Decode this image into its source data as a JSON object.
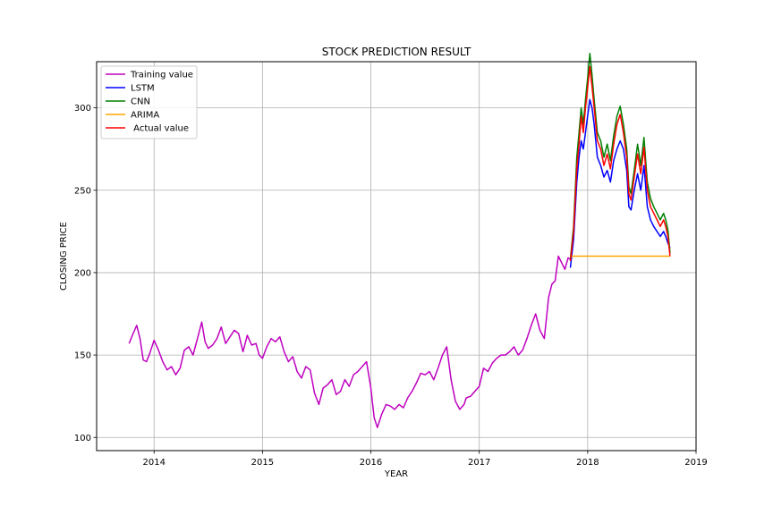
{
  "chart_data": {
    "type": "line",
    "title": "STOCK PREDICTION RESULT",
    "xlabel": "YEAR",
    "ylabel": "CLOSING PRICE",
    "xlim": [
      2013.47,
      2019.0
    ],
    "ylim": [
      92,
      328
    ],
    "x_ticks": [
      2014,
      2015,
      2016,
      2017,
      2018,
      2019
    ],
    "x_tick_labels": [
      "2014",
      "2015",
      "2016",
      "2017",
      "2018",
      "2019"
    ],
    "y_ticks": [
      100,
      150,
      200,
      250,
      300
    ],
    "y_tick_labels": [
      "100",
      "150",
      "200",
      "250",
      "300"
    ],
    "grid": true,
    "legend_position": "top-left",
    "series": [
      {
        "name": "Training value",
        "color": "#bf00bf",
        "x": [
          2013.77,
          2013.8,
          2013.84,
          2013.87,
          2013.9,
          2013.93,
          2013.96,
          2014.0,
          2014.04,
          2014.08,
          2014.12,
          2014.16,
          2014.2,
          2014.24,
          2014.28,
          2014.32,
          2014.36,
          2014.4,
          2014.44,
          2014.47,
          2014.5,
          2014.54,
          2014.58,
          2014.62,
          2014.66,
          2014.7,
          2014.74,
          2014.78,
          2014.82,
          2014.86,
          2014.9,
          2014.94,
          2014.97,
          2015.0,
          2015.04,
          2015.08,
          2015.12,
          2015.16,
          2015.2,
          2015.24,
          2015.28,
          2015.32,
          2015.36,
          2015.4,
          2015.44,
          2015.48,
          2015.52,
          2015.56,
          2015.6,
          2015.64,
          2015.68,
          2015.72,
          2015.76,
          2015.8,
          2015.84,
          2015.88,
          2015.92,
          2015.96,
          2016.0,
          2016.03,
          2016.06,
          2016.1,
          2016.14,
          2016.18,
          2016.22,
          2016.26,
          2016.3,
          2016.34,
          2016.38,
          2016.42,
          2016.46,
          2016.5,
          2016.54,
          2016.58,
          2016.62,
          2016.66,
          2016.7,
          2016.74,
          2016.78,
          2016.82,
          2016.86,
          2016.88,
          2016.92,
          2016.96,
          2017.0,
          2017.04,
          2017.08,
          2017.12,
          2017.16,
          2017.2,
          2017.24,
          2017.28,
          2017.32,
          2017.36,
          2017.4,
          2017.44,
          2017.48,
          2017.52,
          2017.56,
          2017.6,
          2017.64,
          2017.67,
          2017.7,
          2017.73,
          2017.76,
          2017.79,
          2017.82,
          2017.84
        ],
        "y": [
          157,
          162,
          168,
          160,
          147,
          146,
          151,
          159,
          153,
          146,
          141,
          143,
          138,
          142,
          153,
          155,
          150,
          160,
          170,
          158,
          154,
          156,
          160,
          167,
          157,
          161,
          165,
          163,
          152,
          162,
          156,
          157,
          150,
          148,
          155,
          160,
          158,
          161,
          152,
          146,
          149,
          140,
          136,
          143,
          141,
          127,
          120,
          130,
          132,
          135,
          126,
          128,
          135,
          131,
          138,
          140,
          143,
          146,
          130,
          112,
          106,
          114,
          120,
          119,
          117,
          120,
          118,
          124,
          128,
          133,
          139,
          138,
          140,
          135,
          142,
          150,
          155,
          135,
          122,
          117,
          120,
          124,
          125,
          128,
          131,
          142,
          140,
          145,
          148,
          150,
          150,
          152,
          155,
          150,
          153,
          160,
          168,
          175,
          165,
          160,
          185,
          193,
          195,
          210,
          206,
          202,
          209,
          208
        ]
      },
      {
        "name": "LSTM",
        "color": "#0000ff",
        "x": [
          2017.84,
          2017.87,
          2017.9,
          2017.92,
          2017.94,
          2017.96,
          2017.98,
          2018.0,
          2018.02,
          2018.04,
          2018.06,
          2018.09,
          2018.12,
          2018.15,
          2018.18,
          2018.21,
          2018.24,
          2018.27,
          2018.3,
          2018.33,
          2018.36,
          2018.38,
          2018.4,
          2018.43,
          2018.46,
          2018.49,
          2018.52,
          2018.55,
          2018.58,
          2018.61,
          2018.64,
          2018.67,
          2018.7,
          2018.72,
          2018.74,
          2018.76
        ],
        "y": [
          203,
          220,
          255,
          270,
          280,
          275,
          285,
          295,
          305,
          300,
          290,
          270,
          265,
          258,
          262,
          255,
          268,
          275,
          280,
          275,
          262,
          240,
          238,
          250,
          260,
          250,
          265,
          240,
          232,
          228,
          225,
          222,
          225,
          222,
          218,
          215
        ]
      },
      {
        "name": "CNN",
        "color": "#008000",
        "x": [
          2017.84,
          2017.87,
          2017.9,
          2017.92,
          2017.94,
          2017.96,
          2017.98,
          2018.0,
          2018.02,
          2018.04,
          2018.06,
          2018.09,
          2018.12,
          2018.15,
          2018.18,
          2018.21,
          2018.24,
          2018.27,
          2018.3,
          2018.33,
          2018.36,
          2018.38,
          2018.4,
          2018.43,
          2018.46,
          2018.49,
          2018.52,
          2018.55,
          2018.58,
          2018.61,
          2018.64,
          2018.67,
          2018.7,
          2018.72,
          2018.74,
          2018.76
        ],
        "y": [
          208,
          228,
          270,
          285,
          300,
          290,
          305,
          318,
          333,
          320,
          305,
          285,
          280,
          270,
          278,
          268,
          283,
          295,
          301,
          290,
          275,
          252,
          248,
          262,
          278,
          265,
          282,
          255,
          245,
          240,
          236,
          232,
          236,
          232,
          226,
          212
        ]
      },
      {
        "name": "ARIMA",
        "color": "#ffa500",
        "x": [
          2017.84,
          2018.0,
          2018.2,
          2018.4,
          2018.6,
          2018.76
        ],
        "y": [
          210,
          210,
          210,
          210,
          210,
          210
        ]
      },
      {
        "name": " Actual value",
        "color": "#ff0000",
        "x": [
          2017.84,
          2017.87,
          2017.9,
          2017.92,
          2017.94,
          2017.96,
          2017.98,
          2018.0,
          2018.02,
          2018.04,
          2018.06,
          2018.09,
          2018.12,
          2018.15,
          2018.18,
          2018.21,
          2018.24,
          2018.27,
          2018.3,
          2018.33,
          2018.36,
          2018.38,
          2018.4,
          2018.43,
          2018.46,
          2018.49,
          2018.52,
          2018.55,
          2018.58,
          2018.61,
          2018.64,
          2018.67,
          2018.7,
          2018.72,
          2018.74,
          2018.76
        ],
        "y": [
          207,
          225,
          263,
          278,
          295,
          285,
          300,
          312,
          325,
          313,
          300,
          280,
          275,
          265,
          272,
          263,
          278,
          290,
          296,
          285,
          270,
          248,
          244,
          258,
          272,
          260,
          276,
          250,
          240,
          236,
          232,
          228,
          232,
          228,
          222,
          210
        ]
      }
    ]
  }
}
